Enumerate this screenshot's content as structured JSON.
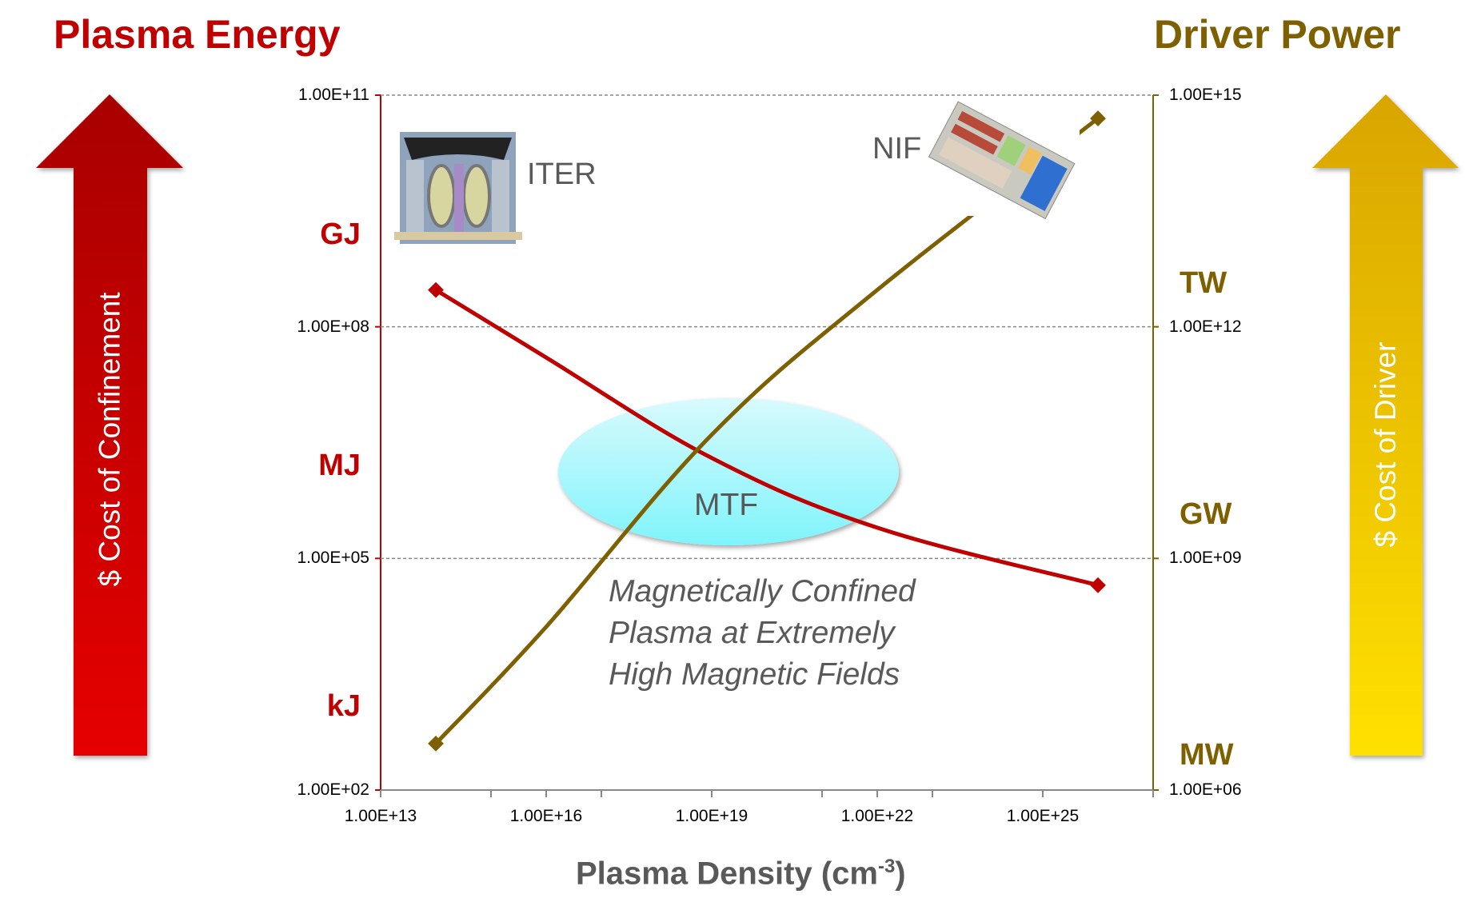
{
  "left_title": "Plasma Energy",
  "right_title": "Driver Power",
  "left_arrow_label": "$ Cost of Confinement",
  "right_arrow_label": "$ Cost of Driver",
  "left_units": [
    "GJ",
    "MJ",
    "kJ"
  ],
  "right_units": [
    "TW",
    "GW",
    "MW"
  ],
  "annotations": {
    "iter": "ITER",
    "nif": "NIF",
    "mtf": "MTF",
    "note_lines": [
      "Magnetically Confined",
      "Plasma at Extremely",
      "High Magnetic Fields"
    ]
  },
  "colors": {
    "energy": "#c00000",
    "power": "#7f6000",
    "left_arrow_top": "#a80000",
    "left_arrow_bottom": "#e60000",
    "right_arrow_top": "#d9a500",
    "right_arrow_bottom": "#ffe100",
    "ellipse_top": "#d8fafd",
    "ellipse_bottom": "#7ff4fb"
  },
  "icons": [
    "iter-tokamak-image",
    "nif-facility-image"
  ],
  "chart_data": {
    "type": "line",
    "xlabel": "Plasma Density (cm",
    "xlabel_sup": "-3",
    "xlabel_end": ")",
    "x_scale": "log",
    "xlim": [
      10000000000000.0,
      1e+27
    ],
    "x_ticks": [
      "1.00E+13",
      "1.00E+16",
      "1.00E+19",
      "1.00E+22",
      "1.00E+25"
    ],
    "y_left": {
      "scale": "log",
      "ylim": [
        100.0,
        100000000000.0
      ],
      "ticks": [
        "1.00E+02",
        "1.00E+05",
        "1.00E+08",
        "1.00E+11"
      ]
    },
    "y_right": {
      "scale": "log",
      "ylim": [
        1000000.0,
        1000000000000000.0
      ],
      "ticks": [
        "1.00E+06",
        "1.00E+09",
        "1.00E+12",
        "1.00E+15"
      ]
    },
    "grid": "horizontal dashed",
    "series": [
      {
        "axis": "left",
        "color": "#c00000",
        "x": [
          100000000000000.0,
          1e+16,
          1e+19,
          1e+22,
          1e+26
        ],
        "y": [
          300000000.0,
          40000000.0,
          2000000.0,
          250000.0,
          45000.0
        ]
      },
      {
        "axis": "right",
        "color": "#7f6000",
        "x": [
          100000000000000.0,
          1e+16,
          1e+19,
          1e+22,
          1e+26
        ],
        "y": [
          4000000.0,
          130000000.0,
          40000000000.0,
          3000000000000.0,
          500000000000000.0
        ]
      }
    ]
  }
}
